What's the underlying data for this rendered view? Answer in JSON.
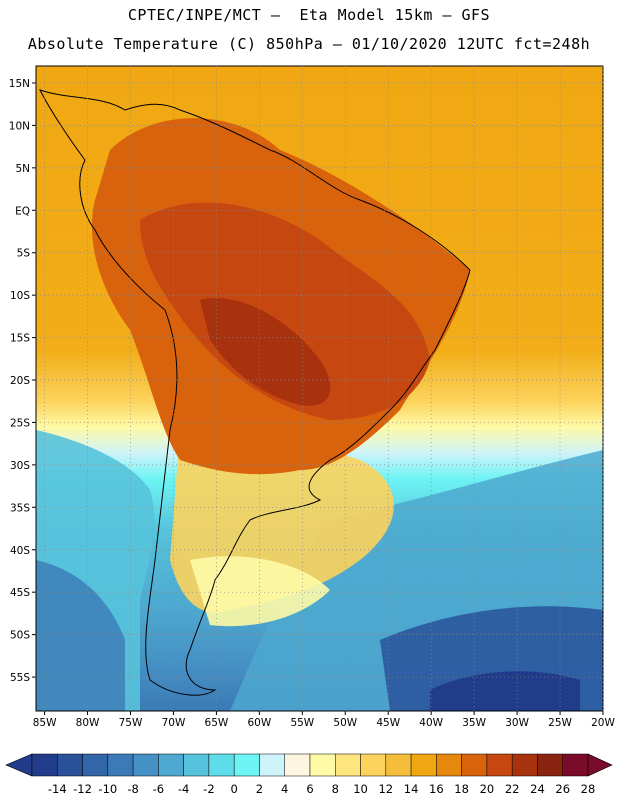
{
  "header": {
    "line1": "CPTEC/INPE/MCT –  Eta Model 15km – GFS",
    "line2": "Absolute Temperature (C) 850hPa – 01/10/2020 12UTC fct=248h"
  },
  "axes": {
    "lat_labels": [
      "15N",
      "10N",
      "5N",
      "EQ",
      "5S",
      "10S",
      "15S",
      "20S",
      "25S",
      "30S",
      "35S",
      "40S",
      "45S",
      "50S",
      "55S"
    ],
    "lat_values": [
      15,
      10,
      5,
      0,
      -5,
      -10,
      -15,
      -20,
      -25,
      -30,
      -35,
      -40,
      -45,
      -50,
      -55
    ],
    "lon_labels": [
      "85W",
      "80W",
      "75W",
      "70W",
      "65W",
      "60W",
      "55W",
      "50W",
      "45W",
      "40W",
      "35W",
      "30W",
      "25W",
      "20W"
    ],
    "lon_values": [
      -85,
      -80,
      -75,
      -70,
      -65,
      -60,
      -55,
      -50,
      -45,
      -40,
      -35,
      -30,
      -25,
      -20
    ],
    "lon_range": [
      -86,
      -20
    ],
    "lat_range": [
      -59,
      17
    ]
  },
  "colorbar": {
    "ticks": [
      "-14",
      "-12",
      "-10",
      "-8",
      "-6",
      "-4",
      "-2",
      "0",
      "2",
      "4",
      "6",
      "8",
      "10",
      "12",
      "14",
      "16",
      "18",
      "20",
      "22",
      "24",
      "26",
      "28"
    ],
    "colors": [
      "#223c8c",
      "#29529b",
      "#3266a8",
      "#3b7ab6",
      "#4590c4",
      "#4ea8cf",
      "#56c3dc",
      "#5fdce9",
      "#6ef4f4",
      "#cff3fa",
      "#fdf5df",
      "#fefaa6",
      "#fde67e",
      "#fcd35c",
      "#f4bd3c",
      "#f0a712",
      "#e6870e",
      "#d9620d",
      "#c64810",
      "#a9320e",
      "#8a2410",
      "#7a0b2a"
    ]
  },
  "legend": {
    "units": "C",
    "level": "850hPa"
  }
}
